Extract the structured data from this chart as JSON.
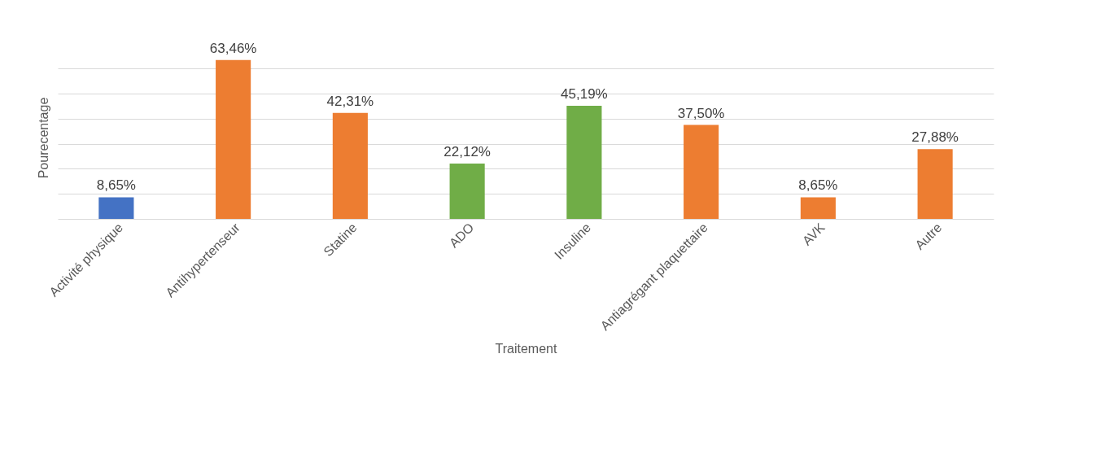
{
  "chart_data": {
    "type": "bar",
    "xlabel": "Traitement",
    "ylabel": "Pourecentage",
    "categories": [
      "Activité physique",
      "Antihypertenseur",
      "Statine",
      "ADO",
      "Insuline",
      "Antiagrégant plaquettaire",
      "AVK",
      "Autre"
    ],
    "values": [
      8.65,
      63.46,
      42.31,
      22.12,
      45.19,
      37.5,
      8.65,
      27.88
    ],
    "colors": [
      "#4472c4",
      "#ed7d31",
      "#ed7d31",
      "#70ad47",
      "#70ad47",
      "#ed7d31",
      "#ed7d31",
      "#ed7d31"
    ],
    "value_labels": [
      "8,65%",
      "63,46%",
      "42,31%",
      "22,12%",
      "45,19%",
      "37,50%",
      "8,65%",
      "27,88%"
    ],
    "grid": "y"
  }
}
